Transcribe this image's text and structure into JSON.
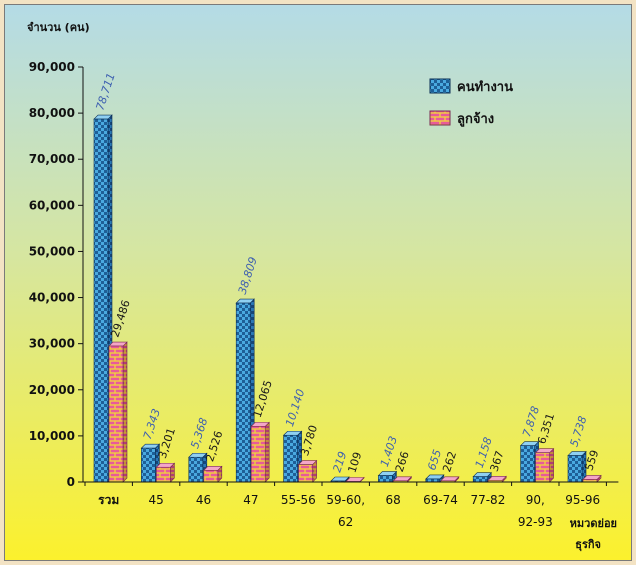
{
  "chart_data": {
    "type": "bar",
    "ylabel": "จำนวน (คน)",
    "xlabel": "หมวดย่อย ธุรกิจ",
    "xlabel_lines": [
      "หมวดย่อย",
      "ธุรกิจ"
    ],
    "ylim": [
      0,
      90000
    ],
    "yticks": [
      "0",
      "10,000",
      "20,000",
      "30,000",
      "40,000",
      "50,000",
      "60,000",
      "70,000",
      "80,000",
      "90,000"
    ],
    "ytick_values": [
      0,
      10000,
      20000,
      30000,
      40000,
      50000,
      60000,
      70000,
      80000,
      90000
    ],
    "categories": [
      "รวม",
      "45",
      "46",
      "47",
      "55-56",
      "59-60, 62",
      "68",
      "69-74",
      "77-82",
      "90, 92-93",
      "95-96"
    ],
    "category_lines": [
      [
        "รวม"
      ],
      [
        "45"
      ],
      [
        "46"
      ],
      [
        "47"
      ],
      [
        "55-56"
      ],
      [
        "59-60,",
        "62"
      ],
      [
        "68"
      ],
      [
        "69-74"
      ],
      [
        "77-82"
      ],
      [
        "90,",
        "92-93"
      ],
      [
        "95-96"
      ]
    ],
    "series": [
      {
        "name": "คนทำงาน",
        "values": [
          78711,
          7343,
          5368,
          38809,
          10140,
          219,
          1403,
          655,
          1158,
          7878,
          5738
        ],
        "labels": [
          "78,711",
          "7,343",
          "5,368",
          "38,809",
          "10,140",
          "219",
          "1,403",
          "655",
          "1,158",
          "7,878",
          "5,738"
        ]
      },
      {
        "name": "ลูกจ้าง",
        "values": [
          29486,
          3201,
          2526,
          12065,
          3780,
          109,
          266,
          262,
          367,
          6351,
          559
        ],
        "labels": [
          "29,486",
          "3,201",
          "2,526",
          "12,065",
          "3,780",
          "109",
          "266",
          "262",
          "367",
          "6,351",
          "559"
        ]
      }
    ],
    "legend_position": "top-right",
    "grid": false,
    "colors": {
      "workers_face": "#4aa9e0",
      "workers_dark": "#1e5f97",
      "workers_side": "#2b78b5",
      "employees_face": "#e85a9a",
      "employees_bricks": "#f0d040",
      "employees_side": "#b23c72",
      "workers_label": "#3d5fb0",
      "employees_label": "#1a1a1a",
      "bg_top": "#b4dbe6",
      "bg_bottom": "#fcf12c"
    }
  }
}
